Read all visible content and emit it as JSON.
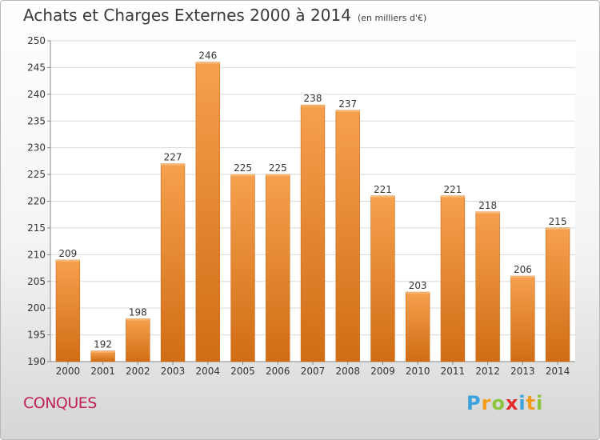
{
  "chart_data": {
    "type": "bar",
    "title": "Achats et Charges Externes 2000 à 2014",
    "subtitle": "(en milliers d'€)",
    "categories": [
      "2000",
      "2001",
      "2002",
      "2003",
      "2004",
      "2005",
      "2006",
      "2007",
      "2008",
      "2009",
      "2010",
      "2011",
      "2012",
      "2013",
      "2014"
    ],
    "values": [
      209,
      192,
      198,
      227,
      246,
      225,
      225,
      238,
      237,
      221,
      203,
      221,
      218,
      206,
      215
    ],
    "ylim": [
      190,
      250
    ],
    "yticks": [
      190,
      195,
      200,
      205,
      210,
      215,
      220,
      225,
      230,
      235,
      240,
      245,
      250
    ],
    "grid": true,
    "bar_color_top": "#f6a04d",
    "bar_color_bottom": "#d06d15"
  },
  "footer": {
    "town": "CONQUES",
    "logo_letters": [
      "P",
      "r",
      "o",
      "x",
      "i",
      "t",
      "i"
    ],
    "logo_colors": [
      "#3aa2dc",
      "#f29b1c",
      "#8cc63e",
      "#e2292c",
      "#3aa2dc",
      "#f29b1c",
      "#8cc63e"
    ]
  }
}
